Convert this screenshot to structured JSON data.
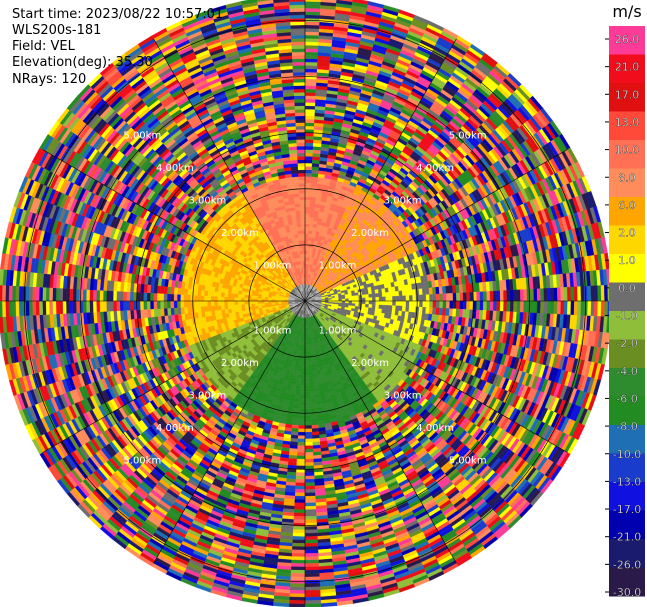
{
  "info": {
    "start_time": "Start time: 2023/08/22 10:57:01",
    "instrument": "WLS200s-181",
    "field": "Field: VEL",
    "elevation": "Elevation(deg): 35.30",
    "nrays": "NRays: 120"
  },
  "chart_data": {
    "type": "heatmap",
    "projection": "polar PPI (plan position indicator)",
    "field": "VEL",
    "units": "m/s",
    "n_rays": 120,
    "elevation_deg": 35.3,
    "range_ring_labels": [
      "1.00km",
      "2.00km",
      "3.00km",
      "4.00km",
      "5.00km"
    ],
    "ring_ranges_km": [
      1,
      2,
      3,
      4,
      5
    ],
    "max_range_km": 5.4,
    "colorbar": {
      "label": "m/s",
      "ticks": [
        "26.0",
        "21.0",
        "17.0",
        "13.0",
        "10.0",
        "8.0",
        "6.0",
        "2.0",
        "1.0",
        "0.0",
        "-1.0",
        "-2.0",
        "-4.0",
        "-6.0",
        "-8.0",
        "-10.0",
        "-13.0",
        "-17.0",
        "-21.0",
        "-26.0",
        "-30.0"
      ],
      "colors": [
        "#ff3b98",
        "#f20d1d",
        "#e01010",
        "#ff4a3a",
        "#ff7055",
        "#ff8c5a",
        "#ffa500",
        "#ffd700",
        "#ffff00",
        "#6e6e6e",
        "#8fbf3a",
        "#6b8e23",
        "#2e8b2e",
        "#228b22",
        "#1e6fb4",
        "#1a3ccc",
        "#1010e0",
        "#0000b0",
        "#1a1a6e",
        "#2a1a4a"
      ]
    },
    "structure": {
      "valid_data_range_km": [
        0.3,
        2.2
      ],
      "noise_beyond_km": 2.2,
      "sectors": [
        {
          "direction": "north",
          "velocity_ms": 8.0
        },
        {
          "direction": "north-east",
          "velocity_ms": 6.0
        },
        {
          "direction": "west",
          "velocity_ms": 2.0
        },
        {
          "direction": "east",
          "velocity_ms": 0.0
        },
        {
          "direction": "south-west",
          "velocity_ms": -2.0
        },
        {
          "direction": "south",
          "velocity_ms": -6.0
        }
      ]
    }
  }
}
